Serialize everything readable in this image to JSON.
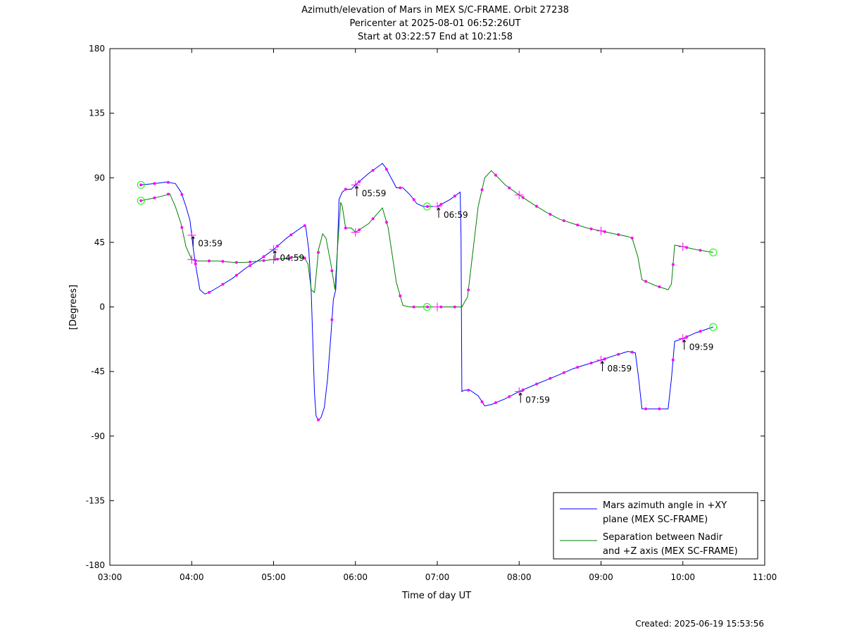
{
  "chart_data": {
    "type": "line",
    "title_lines": [
      "Azimuth/elevation of Mars in MEX S/C-FRAME.  Orbit 27238",
      "Pericenter at 2025-08-01 06:52:26UT",
      "Start at 03:22:57 End at 10:21:58"
    ],
    "xlabel": "Time of day UT",
    "ylabel": "[Degrees]",
    "xlim": [
      3.0,
      11.0
    ],
    "ylim": [
      -180,
      180
    ],
    "x_ticks": [
      {
        "v": 3,
        "label": "03:00"
      },
      {
        "v": 4,
        "label": "04:00"
      },
      {
        "v": 5,
        "label": "05:00"
      },
      {
        "v": 6,
        "label": "06:00"
      },
      {
        "v": 7,
        "label": "07:00"
      },
      {
        "v": 8,
        "label": "08:00"
      },
      {
        "v": 9,
        "label": "09:00"
      },
      {
        "v": 10,
        "label": "10:00"
      },
      {
        "v": 11,
        "label": "11:00"
      }
    ],
    "y_ticks": [
      {
        "v": 180,
        "label": "180"
      },
      {
        "v": 135,
        "label": "135"
      },
      {
        "v": 90,
        "label": "90"
      },
      {
        "v": 45,
        "label": "45"
      },
      {
        "v": 0,
        "label": "0"
      },
      {
        "v": -45,
        "label": "-45"
      },
      {
        "v": -90,
        "label": "-90"
      },
      {
        "v": -135,
        "label": "-135"
      },
      {
        "v": -180,
        "label": "-180"
      }
    ],
    "grid": false,
    "legend_position": "bottom-right",
    "series": [
      {
        "name_lines": [
          "Mars azimuth angle in +XY",
          "plane (MEX SC-FRAME)"
        ],
        "color": "#0000ff",
        "x": [
          3.38,
          3.55,
          3.69,
          3.8,
          3.87,
          3.93,
          3.98,
          4.02,
          4.06,
          4.1,
          4.16,
          4.21,
          4.33,
          4.5,
          4.66,
          4.83,
          5.0,
          5.16,
          5.33,
          5.39,
          5.43,
          5.46,
          5.48,
          5.5,
          5.52,
          5.55,
          5.58,
          5.62,
          5.66,
          5.7,
          5.73,
          5.76,
          5.78,
          5.8,
          5.84,
          5.88,
          5.95,
          6.0,
          6.16,
          6.33,
          6.37,
          6.5,
          6.58,
          6.67,
          6.75,
          6.83,
          6.99,
          7.0,
          7.16,
          7.28,
          7.29,
          7.3,
          7.33,
          7.4,
          7.5,
          7.58,
          7.66,
          7.83,
          8.0,
          8.16,
          8.33,
          8.5,
          8.66,
          8.83,
          9.0,
          9.16,
          9.33,
          9.42,
          9.46,
          9.5,
          9.66,
          9.82,
          9.86,
          9.9,
          10.0,
          10.16,
          10.37
        ],
        "y": [
          85,
          86,
          87,
          86,
          80,
          70,
          60,
          40,
          25,
          12,
          9,
          10,
          14,
          20,
          27,
          33,
          40,
          48,
          55,
          57,
          40,
          10,
          -25,
          -60,
          -76,
          -79,
          -77,
          -70,
          -50,
          -20,
          5,
          12,
          40,
          75,
          80,
          82,
          82,
          85,
          93,
          100,
          97,
          83,
          83,
          78,
          72,
          70,
          70,
          70,
          75,
          80,
          50,
          -59,
          -58,
          -58,
          -62,
          -69,
          -68,
          -64,
          -59,
          -55,
          -51,
          -47,
          -43,
          -40,
          -37,
          -34,
          -31,
          -32,
          -50,
          -71,
          -71,
          -71,
          -50,
          -24,
          -22,
          -18,
          -14
        ]
      },
      {
        "name_lines": [
          "Separation between Nadir",
          "and +Z axis (MEX SC-FRAME)"
        ],
        "color": "#007f00",
        "x": [
          3.38,
          3.55,
          3.69,
          3.73,
          3.8,
          3.87,
          3.93,
          4.0,
          4.06,
          4.16,
          4.33,
          4.5,
          4.66,
          4.83,
          5.0,
          5.16,
          5.33,
          5.37,
          5.42,
          5.46,
          5.5,
          5.55,
          5.6,
          5.64,
          5.7,
          5.75,
          5.78,
          5.82,
          5.84,
          5.88,
          5.95,
          6.0,
          6.16,
          6.33,
          6.4,
          6.5,
          6.58,
          6.67,
          6.83,
          6.99,
          7.0,
          7.16,
          7.3,
          7.37,
          7.5,
          7.58,
          7.66,
          7.83,
          8.0,
          8.16,
          8.33,
          8.5,
          8.66,
          8.83,
          9.0,
          9.16,
          9.33,
          9.38,
          9.45,
          9.5,
          9.66,
          9.82,
          9.86,
          9.9,
          10.0,
          10.16,
          10.37
        ],
        "y": [
          74,
          76,
          78,
          79,
          70,
          58,
          42,
          33,
          32,
          32,
          32,
          31,
          31,
          32,
          33,
          34,
          35,
          35,
          30,
          12,
          10,
          40,
          51,
          48,
          30,
          12,
          40,
          73,
          70,
          55,
          55,
          52,
          58,
          69,
          55,
          17,
          1,
          0,
          0,
          0,
          0,
          0,
          0,
          7,
          70,
          90,
          95,
          85,
          78,
          72,
          66,
          61,
          58,
          55,
          53,
          51,
          49,
          48,
          35,
          19,
          15,
          12,
          16,
          43,
          42,
          40,
          38
        ]
      }
    ],
    "time_annotations": [
      {
        "series": 0,
        "x": 4.0,
        "label": "03:59"
      },
      {
        "series": 0,
        "x": 5.0,
        "label": "04:59"
      },
      {
        "series": 0,
        "x": 6.0,
        "label": "05:59"
      },
      {
        "series": 0,
        "x": 7.0,
        "label": "06:59"
      },
      {
        "series": 0,
        "x": 8.0,
        "label": "07:59"
      },
      {
        "series": 0,
        "x": 9.0,
        "label": "08:59"
      },
      {
        "series": 0,
        "x": 10.0,
        "label": "09:59"
      }
    ],
    "pericenter_x": 6.874,
    "created": "Created: 2025-06-19 15:53:56"
  }
}
